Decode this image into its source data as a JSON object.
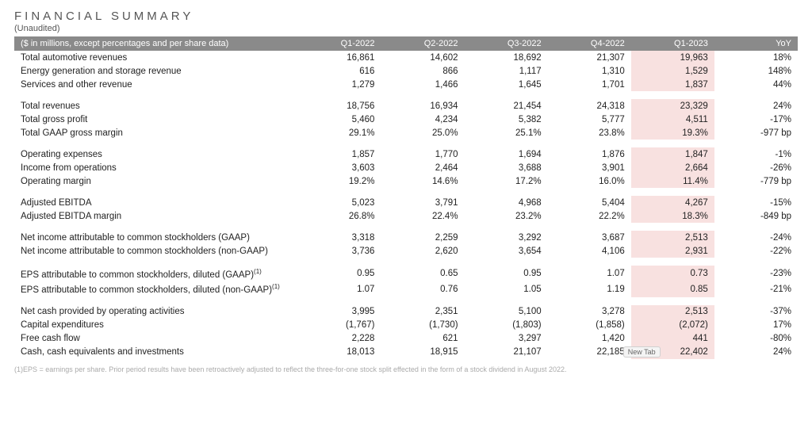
{
  "title": "FINANCIAL SUMMARY",
  "subtitle": "(Unaudited)",
  "header_note": "($ in millions, except percentages and per share data)",
  "columns": [
    "Q1-2022",
    "Q2-2022",
    "Q3-2022",
    "Q4-2022",
    "Q1-2023",
    "YoY"
  ],
  "highlight_col_index": 4,
  "highlight_color": "#f8e1e0",
  "header_bg": "#8a8a8a",
  "rows": [
    {
      "label": "Total automotive revenues",
      "v": [
        "16,861",
        "14,602",
        "18,692",
        "21,307",
        "19,963",
        "18%"
      ]
    },
    {
      "label": "Energy generation and storage revenue",
      "v": [
        "616",
        "866",
        "1,117",
        "1,310",
        "1,529",
        "148%"
      ]
    },
    {
      "label": "Services and other revenue",
      "v": [
        "1,279",
        "1,466",
        "1,645",
        "1,701",
        "1,837",
        "44%"
      ]
    },
    {
      "spacer": true
    },
    {
      "label": "Total revenues",
      "v": [
        "18,756",
        "16,934",
        "21,454",
        "24,318",
        "23,329",
        "24%"
      ]
    },
    {
      "label": "Total gross profit",
      "v": [
        "5,460",
        "4,234",
        "5,382",
        "5,777",
        "4,511",
        "-17%"
      ]
    },
    {
      "label": "Total GAAP gross margin",
      "v": [
        "29.1%",
        "25.0%",
        "25.1%",
        "23.8%",
        "19.3%",
        "-977 bp"
      ]
    },
    {
      "spacer": true
    },
    {
      "label": "Operating expenses",
      "v": [
        "1,857",
        "1,770",
        "1,694",
        "1,876",
        "1,847",
        "-1%"
      ]
    },
    {
      "label": "Income from operations",
      "v": [
        "3,603",
        "2,464",
        "3,688",
        "3,901",
        "2,664",
        "-26%"
      ]
    },
    {
      "label": "Operating margin",
      "v": [
        "19.2%",
        "14.6%",
        "17.2%",
        "16.0%",
        "11.4%",
        "-779 bp"
      ]
    },
    {
      "spacer": true
    },
    {
      "label": "Adjusted EBITDA",
      "v": [
        "5,023",
        "3,791",
        "4,968",
        "5,404",
        "4,267",
        "-15%"
      ]
    },
    {
      "label": "Adjusted EBITDA margin",
      "v": [
        "26.8%",
        "22.4%",
        "23.2%",
        "22.2%",
        "18.3%",
        "-849 bp"
      ]
    },
    {
      "spacer": true
    },
    {
      "label": "Net income attributable to common stockholders (GAAP)",
      "v": [
        "3,318",
        "2,259",
        "3,292",
        "3,687",
        "2,513",
        "-24%"
      ]
    },
    {
      "label": "Net income attributable to common stockholders (non-GAAP)",
      "v": [
        "3,736",
        "2,620",
        "3,654",
        "4,106",
        "2,931",
        "-22%"
      ]
    },
    {
      "spacer": true
    },
    {
      "label": "EPS attributable to common stockholders, diluted (GAAP)",
      "sup": "(1)",
      "v": [
        "0.95",
        "0.65",
        "0.95",
        "1.07",
        "0.73",
        "-23%"
      ]
    },
    {
      "label": "EPS attributable to common stockholders, diluted (non-GAAP)",
      "sup": "(1)",
      "v": [
        "1.07",
        "0.76",
        "1.05",
        "1.19",
        "0.85",
        "-21%"
      ]
    },
    {
      "spacer": true
    },
    {
      "label": "Net cash provided by operating activities",
      "v": [
        "3,995",
        "2,351",
        "5,100",
        "3,278",
        "2,513",
        "-37%"
      ]
    },
    {
      "label": "Capital expenditures",
      "v": [
        "(1,767)",
        "(1,730)",
        "(1,803)",
        "(1,858)",
        "(2,072)",
        "17%"
      ]
    },
    {
      "label": "Free cash flow",
      "v": [
        "2,228",
        "621",
        "3,297",
        "1,420",
        "441",
        "-80%"
      ]
    },
    {
      "label": "Cash, cash equivalents and investments",
      "v": [
        "18,013",
        "18,915",
        "21,107",
        "22,185",
        "22,402",
        "24%"
      ],
      "badge_after_col": 3,
      "badge_text": "New Tab"
    }
  ],
  "footnote": "(1)EPS = earnings per share. Prior period results have been retroactively adjusted to reflect the three-for-one stock split effected in the form of a stock dividend in August 2022."
}
